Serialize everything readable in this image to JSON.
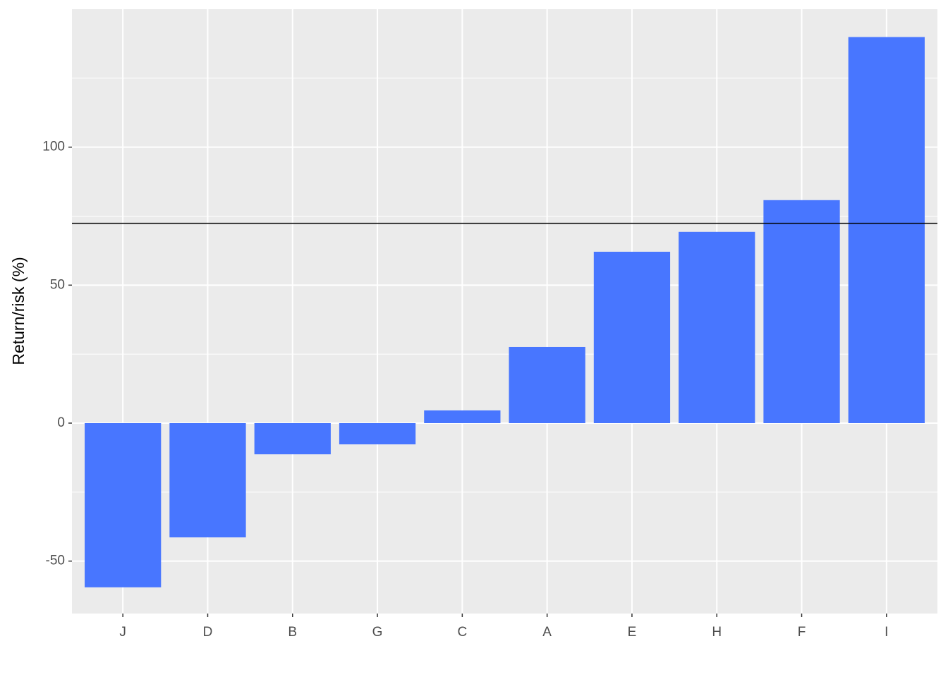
{
  "chart_data": {
    "type": "bar",
    "y_label": "Return/risk (%)",
    "categories": [
      "J",
      "D",
      "B",
      "G",
      "C",
      "A",
      "E",
      "H",
      "F",
      "I"
    ],
    "values": [
      -59.5,
      -41.4,
      -11.3,
      -7.7,
      4.6,
      27.6,
      62.1,
      69.3,
      80.8,
      139.9
    ],
    "color": "#4876ff",
    "ylim": [
      -69,
      150
    ],
    "yticks": [
      -50,
      0,
      50,
      100
    ],
    "yminor": [
      -25,
      25,
      75,
      125
    ],
    "grid": true,
    "hline": 72.4
  }
}
